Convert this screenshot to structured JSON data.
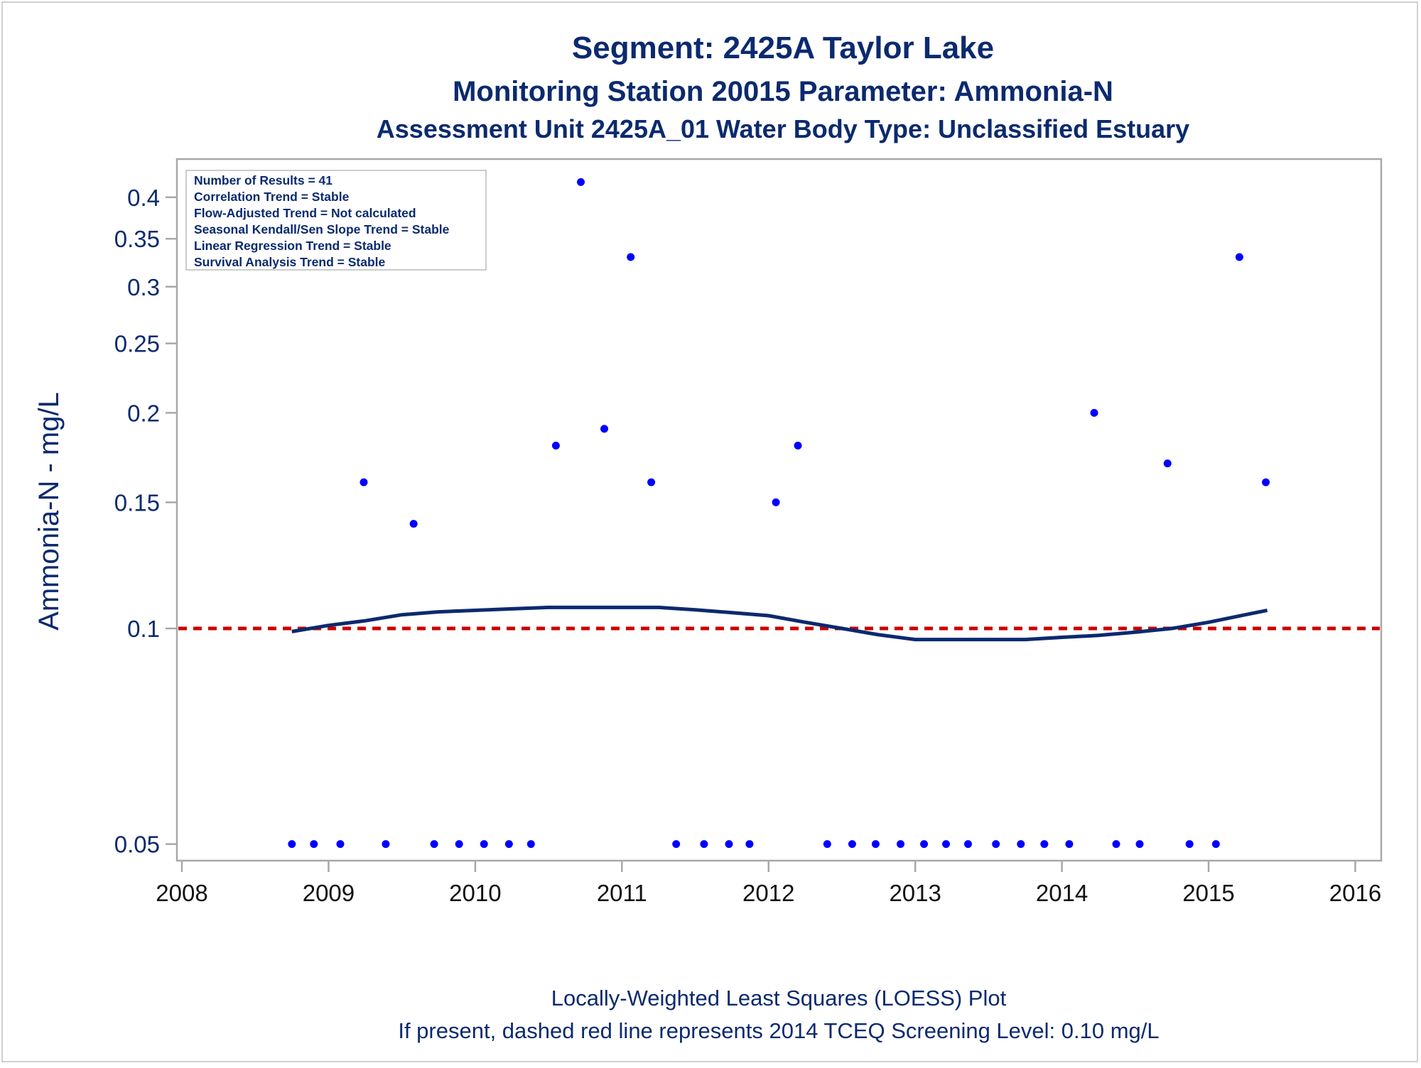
{
  "chart_data": {
    "type": "scatter",
    "title": "Segment: 2425A  Taylor Lake",
    "subtitle": "Monitoring Station 20015 Parameter: Ammonia-N",
    "subtitle2": "Assessment Unit 2425A_01   Water Body Type: Unclassified Estuary",
    "ylabel": "Ammonia-N - mg/L",
    "yscale": "log",
    "ylim": [
      0.0485,
      0.44
    ],
    "xlim": [
      2008.0,
      2016.08
    ],
    "x_ticks": [
      "2008",
      "2009",
      "2010",
      "2011",
      "2012",
      "2013",
      "2014",
      "2015",
      "2016"
    ],
    "x_tick_values": [
      2008,
      2009,
      2010,
      2011,
      2012,
      2013,
      2014,
      2015,
      2016
    ],
    "y_ticks": [
      "0.05",
      "0.1",
      "0.15",
      "0.2",
      "0.25",
      "0.3",
      "0.35",
      "0.4"
    ],
    "y_tick_values": [
      0.05,
      0.1,
      0.15,
      0.2,
      0.25,
      0.3,
      0.35,
      0.4
    ],
    "legend_box": [
      "Number of Results = 41",
      "Correlation Trend = Stable",
      "Flow-Adjusted Trend = Not calculated",
      "Seasonal Kendall/Sen Slope Trend = Stable",
      "Linear Regression Trend = Stable",
      "Survival Analysis Trend = Stable"
    ],
    "legend_placement": "top-left",
    "grid": false,
    "series": [
      {
        "type": "scatter",
        "color": "#0000ff",
        "x": [
          2008.75,
          2008.9,
          2009.08,
          2009.24,
          2009.39,
          2009.58,
          2009.72,
          2009.89,
          2010.06,
          2010.23,
          2010.38,
          2010.55,
          2010.72,
          2010.88,
          2011.06,
          2011.2,
          2011.37,
          2011.56,
          2011.73,
          2011.87,
          2012.05,
          2012.2,
          2012.4,
          2012.57,
          2012.73,
          2012.9,
          2013.06,
          2013.21,
          2013.36,
          2013.55,
          2013.72,
          2013.88,
          2014.05,
          2014.22,
          2014.37,
          2014.53,
          2014.72,
          2014.87,
          2015.05,
          2015.21,
          2015.39
        ],
        "y": [
          0.05,
          0.05,
          0.05,
          0.16,
          0.05,
          0.14,
          0.05,
          0.05,
          0.05,
          0.05,
          0.05,
          0.18,
          0.42,
          0.19,
          0.33,
          0.16,
          0.05,
          0.05,
          0.05,
          0.05,
          0.15,
          0.18,
          0.05,
          0.05,
          0.05,
          0.05,
          0.05,
          0.05,
          0.05,
          0.05,
          0.05,
          0.05,
          0.05,
          0.2,
          0.05,
          0.05,
          0.17,
          0.05,
          0.05,
          0.33,
          0.16
        ]
      },
      {
        "type": "line",
        "color": "#0b2a6e",
        "x": [
          2008.75,
          2009.0,
          2009.25,
          2009.5,
          2009.75,
          2010.0,
          2010.25,
          2010.5,
          2010.75,
          2011.0,
          2011.25,
          2011.5,
          2011.75,
          2012.0,
          2012.25,
          2012.5,
          2012.75,
          2013.0,
          2013.25,
          2013.5,
          2013.75,
          2014.0,
          2014.25,
          2014.5,
          2014.75,
          2015.0,
          2015.25,
          2015.4
        ],
        "y": [
          0.099,
          0.101,
          0.1025,
          0.1045,
          0.1055,
          0.106,
          0.1065,
          0.107,
          0.107,
          0.107,
          0.107,
          0.1062,
          0.1052,
          0.1042,
          0.102,
          0.1,
          0.098,
          0.0965,
          0.0965,
          0.0965,
          0.0965,
          0.0972,
          0.0978,
          0.0988,
          0.1,
          0.102,
          0.1045,
          0.106
        ]
      },
      {
        "type": "hline",
        "style": "dashed",
        "color": "#cc0000",
        "y": 0.1
      }
    ],
    "footer1": "Locally-Weighted Least Squares (LOESS) Plot",
    "footer2": "If present, dashed red line represents 2014 TCEQ Screening Level: 0.10 mg/L"
  }
}
